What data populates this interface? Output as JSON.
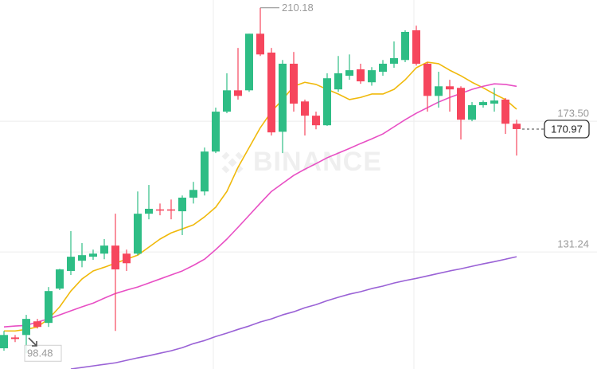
{
  "chart_data": {
    "type": "candlestick",
    "watermark": "BINANCE",
    "up_color": "#2ebd85",
    "down_color": "#f6465d",
    "open": [
      100.1,
      103.6,
      104.4,
      108.8,
      108.3,
      119.4,
      125.1,
      128.4,
      129.7,
      130.7,
      133.3,
      130.7,
      130.7,
      143.6,
      145.0,
      145.0,
      144.4,
      148.8,
      150.8,
      163.7,
      176.6,
      183.5,
      183.5,
      201.8,
      195.7,
      170.1,
      192.1,
      179.9,
      175.3,
      172.2,
      183.8,
      188.2,
      190.3,
      186.1,
      189.5,
      192.1,
      193.3,
      202.9,
      192.1,
      181.7,
      184.8,
      184.3,
      174.0,
      178.7,
      179.2,
      180.5,
      172.7
    ],
    "high": [
      105.7,
      104.4,
      110.9,
      109.6,
      119.9,
      125.8,
      138.0,
      134.1,
      132.0,
      135.4,
      143.6,
      132.0,
      150.8,
      152.9,
      146.9,
      148.2,
      149.5,
      153.9,
      165.0,
      177.9,
      189.0,
      197.2,
      201.8,
      210.18,
      197.2,
      193.3,
      195.9,
      180.5,
      176.6,
      189.0,
      194.6,
      195.1,
      192.1,
      191.0,
      193.3,
      199.3,
      202.9,
      204.4,
      192.6,
      189.5,
      186.9,
      184.8,
      179.7,
      180.2,
      184.3,
      181.0,
      174.0
    ],
    "low": [
      99.3,
      102.1,
      98.48,
      106.5,
      107.0,
      118.9,
      123.8,
      126.3,
      128.7,
      128.9,
      105.7,
      125.1,
      130.2,
      141.8,
      143.1,
      141.8,
      136.7,
      146.9,
      149.5,
      163.2,
      176.1,
      180.5,
      183.0,
      194.6,
      168.9,
      163.2,
      176.6,
      168.9,
      170.9,
      172.0,
      183.0,
      186.9,
      185.6,
      185.0,
      188.2,
      190.8,
      192.6,
      191.5,
      176.6,
      177.9,
      176.6,
      167.6,
      173.5,
      177.9,
      176.6,
      169.4,
      162.4
    ],
    "close": [
      104.4,
      103.1,
      109.6,
      107.0,
      118.6,
      125.6,
      129.7,
      130.2,
      130.7,
      133.3,
      125.6,
      127.6,
      143.6,
      145.2,
      144.6,
      144.6,
      148.8,
      151.3,
      163.7,
      176.6,
      183.5,
      181.7,
      201.8,
      195.1,
      169.9,
      192.1,
      179.2,
      175.3,
      172.2,
      187.4,
      189.0,
      190.0,
      186.4,
      190.0,
      192.1,
      193.9,
      202.4,
      192.1,
      181.7,
      184.8,
      183.8,
      174.0,
      178.7,
      179.7,
      180.2,
      172.7,
      170.97
    ],
    "lines": [
      {
        "color": "#f0b90b",
        "values": [
          105.7,
          105.7,
          106.2,
          107.0,
          109.6,
          113.5,
          118.6,
          122.5,
          125.1,
          126.3,
          127.6,
          128.9,
          130.2,
          132.8,
          135.4,
          137.4,
          138.7,
          140.0,
          142.6,
          145.7,
          150.8,
          158.6,
          165.0,
          171.4,
          176.6,
          180.5,
          184.8,
          186.1,
          185.4,
          183.8,
          182.3,
          180.5,
          181.2,
          182.3,
          182.3,
          183.8,
          186.9,
          190.8,
          192.6,
          192.1,
          190.0,
          188.2,
          186.1,
          184.3,
          182.3,
          180.5,
          177.4
        ]
      },
      {
        "color": "#e84fc4",
        "values": [
          107.0,
          107.3,
          107.5,
          108.6,
          109.6,
          110.9,
          112.2,
          113.5,
          114.7,
          116.3,
          117.8,
          118.9,
          119.9,
          121.2,
          122.5,
          123.8,
          125.1,
          126.9,
          128.9,
          132.0,
          135.4,
          139.2,
          143.1,
          147.0,
          150.8,
          153.4,
          156.0,
          158.0,
          159.8,
          161.7,
          163.2,
          164.7,
          166.3,
          167.8,
          169.4,
          171.7,
          174.0,
          176.1,
          177.9,
          179.7,
          181.2,
          182.5,
          183.8,
          184.8,
          185.6,
          185.4,
          184.8
        ]
      },
      {
        "color": "#9a62d6",
        "values": [
          null,
          null,
          null,
          null,
          null,
          null,
          93.4,
          93.9,
          94.4,
          94.9,
          95.4,
          96.2,
          97.0,
          97.7,
          98.5,
          99.3,
          100.3,
          101.6,
          102.6,
          103.9,
          105.0,
          106.2,
          107.3,
          108.6,
          109.6,
          110.9,
          111.9,
          113.2,
          114.2,
          115.5,
          116.6,
          117.6,
          118.4,
          119.4,
          120.2,
          121.2,
          122.0,
          122.7,
          123.5,
          124.3,
          125.1,
          125.8,
          126.6,
          127.4,
          128.1,
          128.9,
          129.7
        ]
      }
    ],
    "ylim": [
      93.4,
      212.7
    ],
    "yticks": [
      131.24,
      {
        "value": 173.5,
        "label": "173.50"
      }
    ],
    "grid": true
  }
}
